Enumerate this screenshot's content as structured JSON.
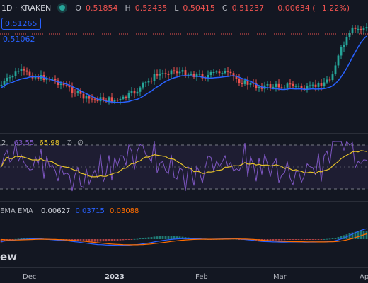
{
  "header": {
    "symbol_label": "1D · KRAKEN",
    "open_label": "O",
    "open": "0.51854",
    "high_label": "H",
    "high": "0.52435",
    "low_label": "L",
    "low": "0.50415",
    "close_label": "C",
    "close": "0.51237",
    "change": "−0.00634 (−1.22%)"
  },
  "price_pane": {
    "tag_boxed": "0.51265",
    "tag_line": "0.51062"
  },
  "rsi_pane": {
    "left_cut": "2",
    "rsi_value": "63.55",
    "rsi_ma_value": "65.98",
    "hidden_1": "∅",
    "hidden_2": "∅"
  },
  "macd_pane": {
    "label": "EMA EMA",
    "histogram": "0.00627",
    "macd": "0.03715",
    "signal": "0.03088"
  },
  "time_axis": {
    "labels": [
      "Dec",
      "2023",
      "Feb",
      "Mar",
      "Ap"
    ]
  },
  "watermark": "ew",
  "colors": {
    "background": "#131722",
    "up": "#26a69a",
    "down": "#ef5350",
    "ma_line": "#2962ff",
    "rsi_line": "#7e57c2",
    "rsi_ma": "#e6c229",
    "macd_line": "#2962ff",
    "signal_line": "#ff6d00"
  }
}
